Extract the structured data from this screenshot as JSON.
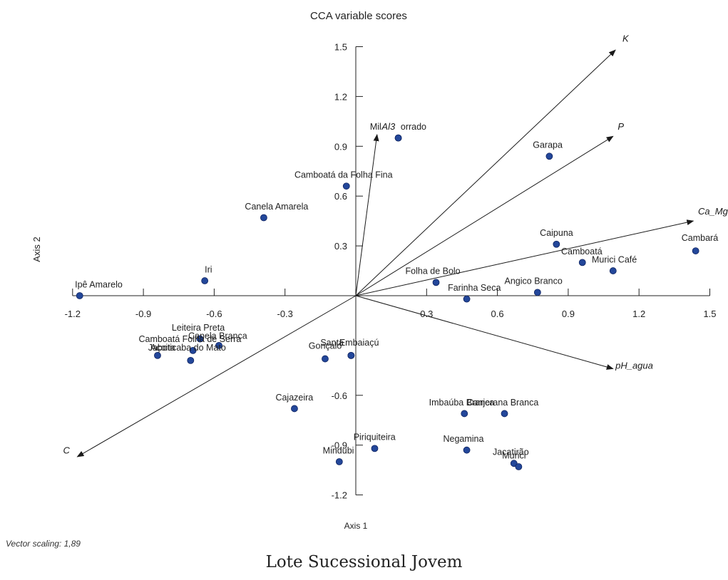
{
  "vector_scaling": "Vector scaling: 1,89",
  "caption": "Lote Sucessional Jovem",
  "colors": {
    "point": "#23479a",
    "axis": "#222222",
    "vector": "#1a1a1a"
  },
  "chart_data": {
    "type": "scatter",
    "title": "CCA variable scores",
    "xlabel": "Axis 1",
    "ylabel": "Axis 2",
    "xlim": [
      -1.2,
      1.5
    ],
    "ylim": [
      -1.2,
      1.5
    ],
    "xticks": [
      "-1.2",
      "-0.9",
      "-0.6",
      "-0.3",
      "0.3",
      "0.6",
      "0.9",
      "1.2",
      "1.5"
    ],
    "xtick_values": [
      -1.2,
      -0.9,
      -0.6,
      -0.3,
      0.3,
      0.6,
      0.9,
      1.2,
      1.5
    ],
    "yticks": [
      "1.5",
      "1.2",
      "0.9",
      "0.6",
      "0.3",
      "-0.6",
      "-0.9",
      "-1.2"
    ],
    "ytick_values": [
      1.5,
      1.2,
      0.9,
      0.6,
      0.3,
      -0.6,
      -0.9,
      -1.2
    ],
    "grid": false,
    "species": [
      {
        "name": "Ipê Amarelo",
        "x": -1.17,
        "y": 0.0
      },
      {
        "name": "Iri",
        "x": -0.64,
        "y": 0.09
      },
      {
        "name": "Canela Amarela",
        "x": -0.39,
        "y": 0.47
      },
      {
        "name": "Camboatá da Folha Fina",
        "x": -0.04,
        "y": 0.66
      },
      {
        "name": "Mil",
        "x": 0.18,
        "y": 0.95
      },
      {
        "name": "orrado",
        "x": 0.18,
        "y": 0.95
      },
      {
        "name": "Garapa",
        "x": 0.82,
        "y": 0.84
      },
      {
        "name": "Caipuna",
        "x": 0.85,
        "y": 0.31
      },
      {
        "name": "Camboatá",
        "x": 0.96,
        "y": 0.2
      },
      {
        "name": "Murici Café",
        "x": 1.09,
        "y": 0.15
      },
      {
        "name": "Cambará",
        "x": 1.44,
        "y": 0.27
      },
      {
        "name": "Folha de Bolo",
        "x": 0.34,
        "y": 0.08
      },
      {
        "name": "Angico Branco",
        "x": 0.77,
        "y": 0.02
      },
      {
        "name": "Farinha Seca",
        "x": 0.47,
        "y": -0.02
      },
      {
        "name": "Leiteira Preta",
        "x": -0.66,
        "y": -0.26
      },
      {
        "name": "Canela Branca",
        "x": -0.58,
        "y": -0.3
      },
      {
        "name": "Camboatá Folha de Serra",
        "x": -0.69,
        "y": -0.33
      },
      {
        "name": "Açoita",
        "x": -0.84,
        "y": -0.36
      },
      {
        "name": "Jaboticaba do Mato",
        "x": -0.7,
        "y": -0.39
      },
      {
        "name": "Gonçalo",
        "x": -0.13,
        "y": -0.38
      },
      {
        "name": "Santa",
        "x": -0.02,
        "y": -0.36
      },
      {
        "name": "Embaiaçú",
        "x": -0.02,
        "y": -0.36
      },
      {
        "name": "Cajazeira",
        "x": -0.26,
        "y": -0.68
      },
      {
        "name": "Imbaúba Branca",
        "x": 0.46,
        "y": -0.71
      },
      {
        "name": "Canjerana Branca",
        "x": 0.63,
        "y": -0.71
      },
      {
        "name": "Piriquiteira",
        "x": 0.08,
        "y": -0.92
      },
      {
        "name": "Mindubi",
        "x": -0.07,
        "y": -1.0
      },
      {
        "name": "Negamina",
        "x": 0.47,
        "y": -0.93
      },
      {
        "name": "Jacatirão",
        "x": 0.67,
        "y": -1.01
      },
      {
        "name": "Murici",
        "x": 0.69,
        "y": -1.03
      }
    ],
    "species_labels": [
      {
        "text": "Ipê Amarelo",
        "x": -1.19,
        "y": 0.05
      },
      {
        "text": "Iri",
        "x": -0.64,
        "y": 0.14
      },
      {
        "text": "Canela Amarela",
        "x": -0.47,
        "y": 0.52
      },
      {
        "text": "Camboatá da Folha Fina",
        "x": -0.26,
        "y": 0.71
      },
      {
        "text": "Mil",
        "x": 0.06,
        "y": 1.0
      },
      {
        "text": "orrado",
        "x": 0.19,
        "y": 1.0
      },
      {
        "text": "Garapa",
        "x": 0.75,
        "y": 0.89
      },
      {
        "text": "Caipuna",
        "x": 0.78,
        "y": 0.36
      },
      {
        "text": "Camboatá",
        "x": 0.87,
        "y": 0.25
      },
      {
        "text": "Murici Café",
        "x": 1.0,
        "y": 0.2
      },
      {
        "text": "Cambará",
        "x": 1.38,
        "y": 0.33
      },
      {
        "text": "Folha de Bolo",
        "x": 0.21,
        "y": 0.13
      },
      {
        "text": "Angico Branco",
        "x": 0.63,
        "y": 0.07
      },
      {
        "text": "Farinha Seca",
        "x": 0.39,
        "y": 0.03
      },
      {
        "text": "Leiteira Preta",
        "x": -0.78,
        "y": -0.21
      },
      {
        "text": "Canela Branca",
        "x": -0.71,
        "y": -0.26
      },
      {
        "text": "Camboatá Folha de Serra",
        "x": -0.92,
        "y": -0.28
      },
      {
        "text": "Açoita",
        "x": -0.87,
        "y": -0.33
      },
      {
        "text": "Jaboticaba do Mato",
        "x": -0.88,
        "y": -0.33
      },
      {
        "text": "Gonçalo",
        "x": -0.2,
        "y": -0.32
      },
      {
        "text": "Santa",
        "x": -0.15,
        "y": -0.3
      },
      {
        "text": "Embaiaçú",
        "x": -0.07,
        "y": -0.3
      },
      {
        "text": "Cajazeira",
        "x": -0.34,
        "y": -0.63
      },
      {
        "text": "Imbaúba Branca",
        "x": 0.31,
        "y": -0.66
      },
      {
        "text": "Canjerana Branca",
        "x": 0.47,
        "y": -0.66
      },
      {
        "text": "Piriquiteira",
        "x": -0.01,
        "y": -0.87
      },
      {
        "text": "Mindubi",
        "x": -0.14,
        "y": -0.95
      },
      {
        "text": "Negamina",
        "x": 0.37,
        "y": -0.88
      },
      {
        "text": "Jacatirão",
        "x": 0.58,
        "y": -0.96
      },
      {
        "text": "Murici",
        "x": 0.62,
        "y": -0.98
      }
    ],
    "vectors": [
      {
        "name": "K",
        "x": 1.1,
        "y": 1.48,
        "label_x": 1.13,
        "label_y": 1.53
      },
      {
        "name": "P",
        "x": 1.09,
        "y": 0.96,
        "label_x": 1.11,
        "label_y": 1.0
      },
      {
        "name": "Ca_Mg",
        "x": 1.43,
        "y": 0.45,
        "label_x": 1.45,
        "label_y": 0.49
      },
      {
        "name": "pH_agua",
        "x": 1.09,
        "y": -0.44,
        "label_x": 1.1,
        "label_y": -0.44
      },
      {
        "name": "Al3",
        "x": 0.09,
        "y": 0.97,
        "label_x": 0.11,
        "label_y": 1.0
      },
      {
        "name": "C",
        "x": -1.18,
        "y": -0.97,
        "label_x": -1.24,
        "label_y": -0.95
      }
    ]
  }
}
